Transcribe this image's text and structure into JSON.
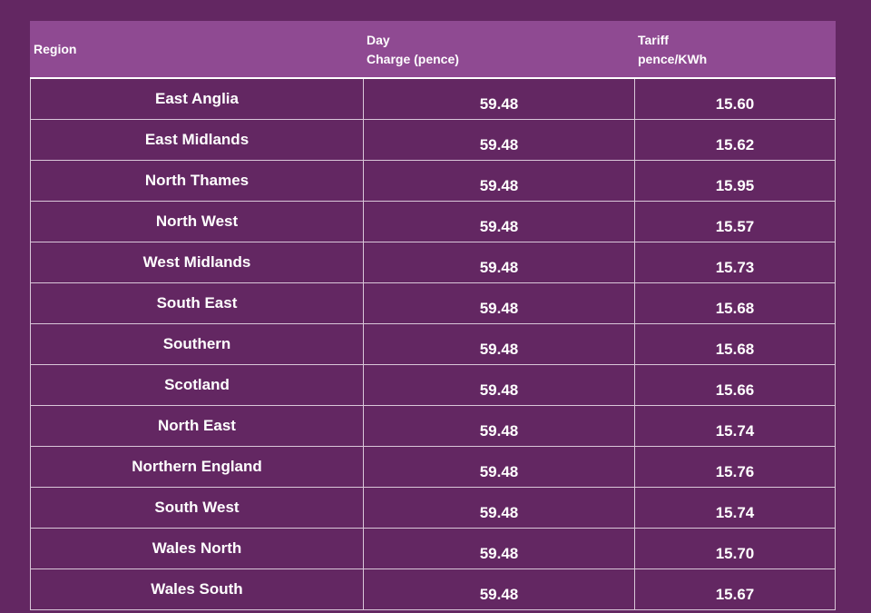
{
  "table": {
    "headers": {
      "region": "Region",
      "day_line1": "Day",
      "day_line2": "Charge (pence)",
      "tariff_line1": "Tariff",
      "tariff_line2": "pence/KWh"
    },
    "rows": [
      {
        "region": "East Anglia",
        "day_charge": "59.48",
        "tariff": "15.60"
      },
      {
        "region": "East Midlands",
        "day_charge": "59.48",
        "tariff": "15.62"
      },
      {
        "region": "North Thames",
        "day_charge": "59.48",
        "tariff": "15.95"
      },
      {
        "region": "North West",
        "day_charge": "59.48",
        "tariff": "15.57"
      },
      {
        "region": "West Midlands",
        "day_charge": "59.48",
        "tariff": "15.73"
      },
      {
        "region": "South East",
        "day_charge": "59.48",
        "tariff": "15.68"
      },
      {
        "region": "Southern",
        "day_charge": "59.48",
        "tariff": "15.68"
      },
      {
        "region": "Scotland",
        "day_charge": "59.48",
        "tariff": "15.66"
      },
      {
        "region": "North East",
        "day_charge": "59.48",
        "tariff": "15.74"
      },
      {
        "region": "Northern England",
        "day_charge": "59.48",
        "tariff": "15.76"
      },
      {
        "region": "South West",
        "day_charge": "59.48",
        "tariff": "15.74"
      },
      {
        "region": "Wales North",
        "day_charge": "59.48",
        "tariff": "15.70"
      },
      {
        "region": "Wales South",
        "day_charge": "59.48",
        "tariff": "15.67"
      }
    ]
  },
  "colors": {
    "background": "#632762",
    "header_background": "#8f4a92",
    "grid_lines": "#d9c7d9",
    "text": "#ffffff"
  }
}
